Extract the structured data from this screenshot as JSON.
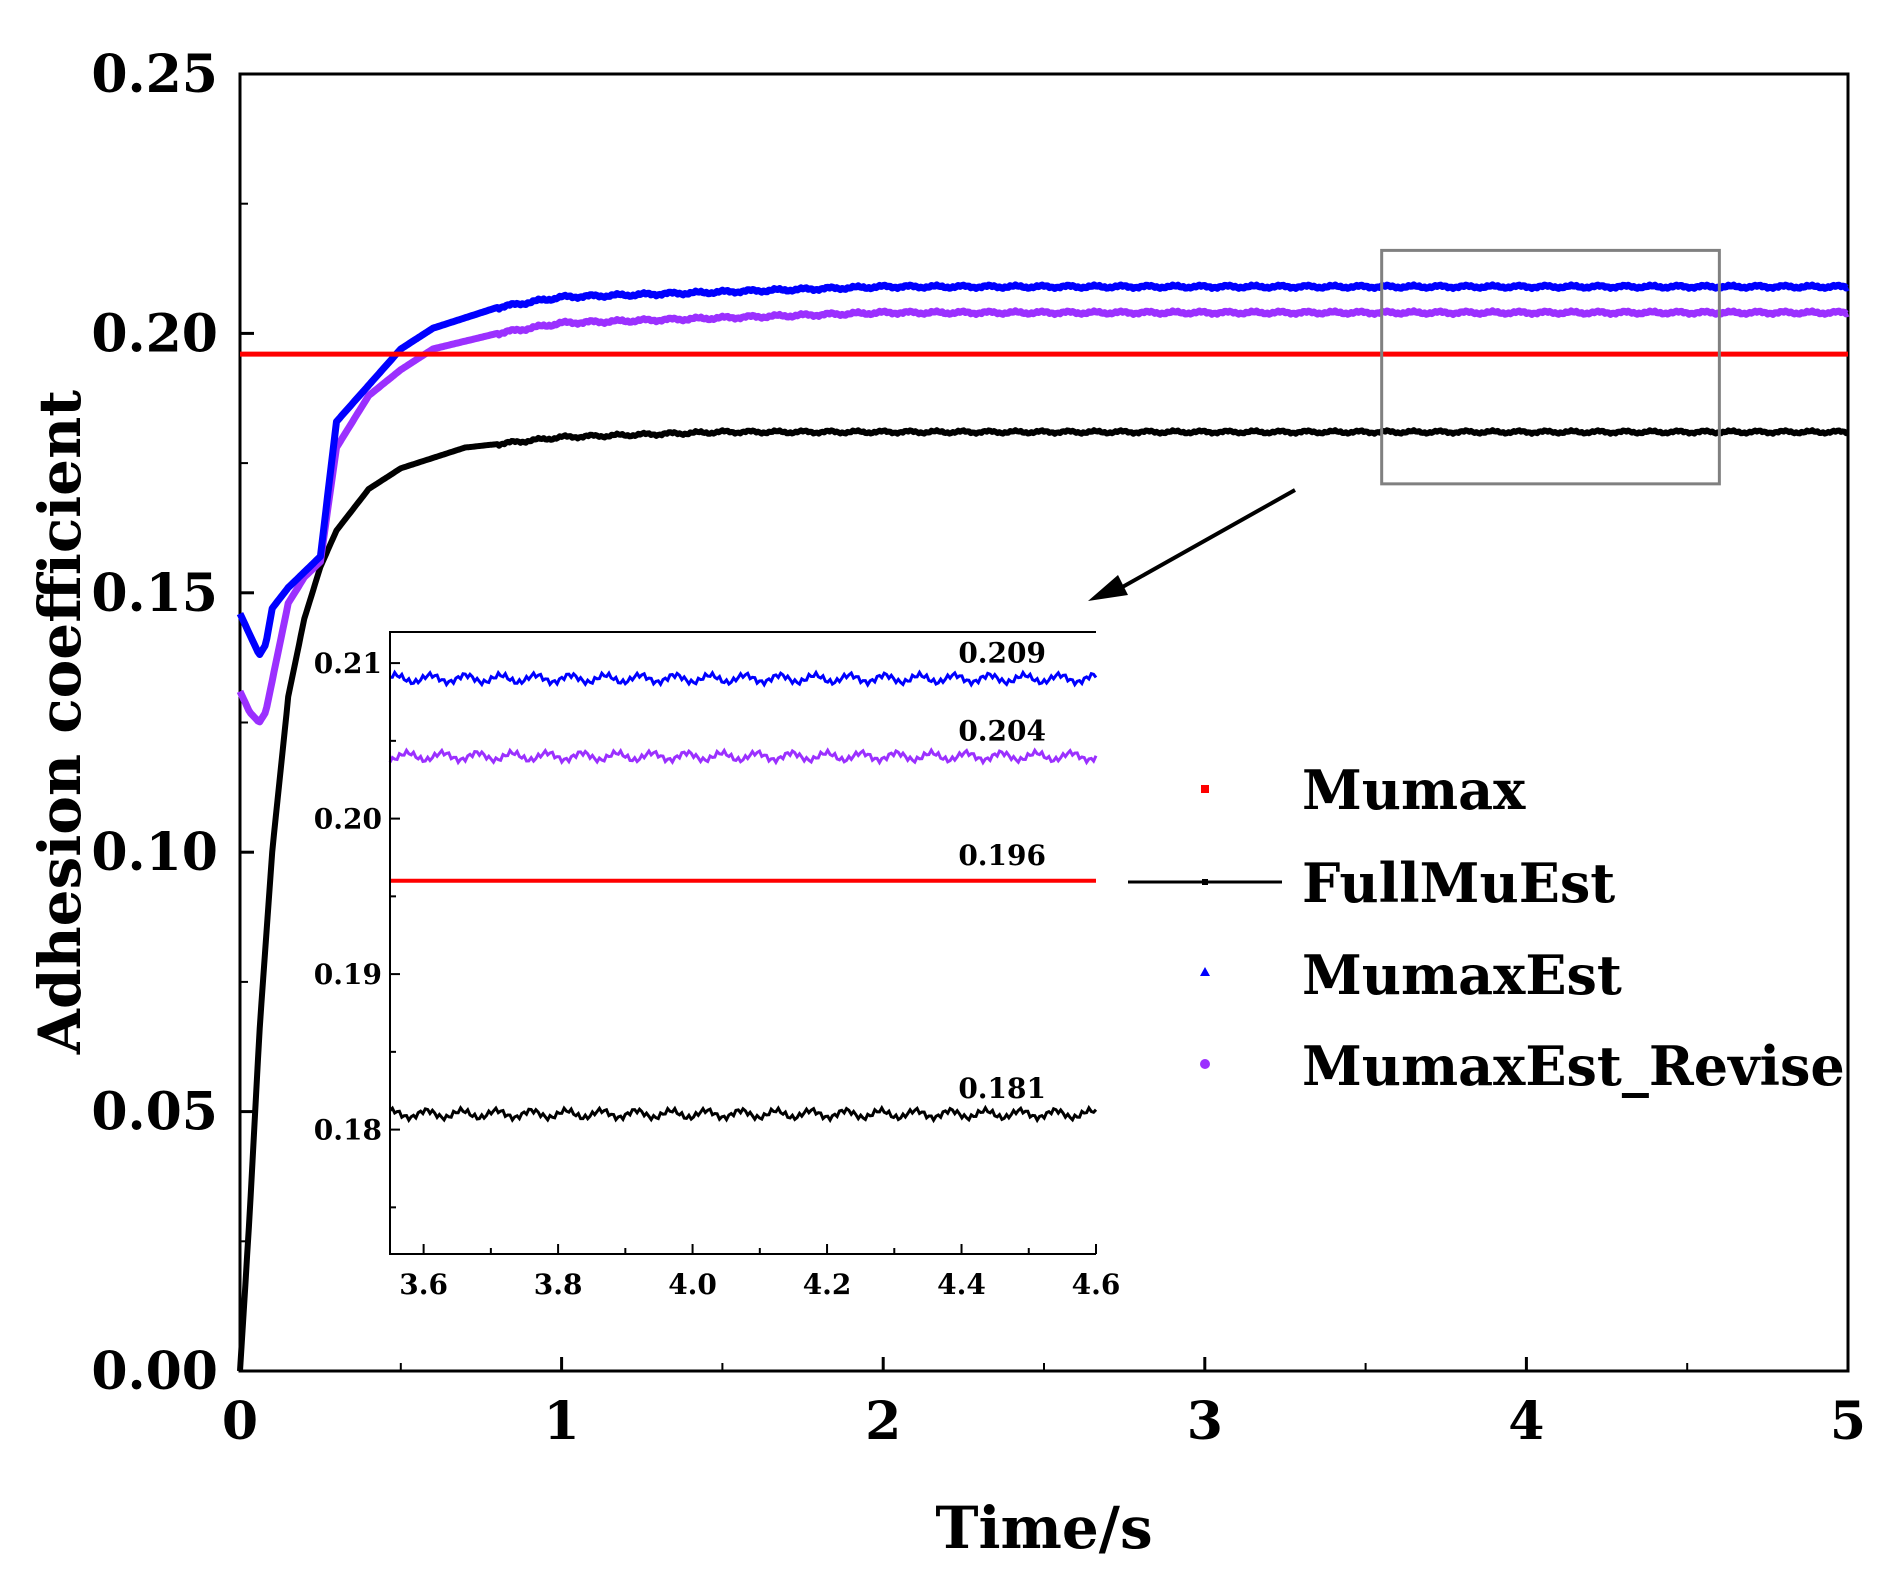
{
  "chart_data": [
    {
      "type": "line",
      "role": "main",
      "title": "",
      "xlabel": "Time/s",
      "ylabel": "Adhesion coefficient",
      "xlim": [
        0,
        5
      ],
      "ylim": [
        0,
        0.25
      ],
      "x_ticks": [
        "0",
        "1",
        "2",
        "3",
        "4",
        "5"
      ],
      "y_ticks": [
        "0.00",
        "0.05",
        "0.10",
        "0.15",
        "0.20",
        "0.25"
      ],
      "series": [
        {
          "name": "Mumax",
          "color": "#ff0000",
          "points": [
            [
              0,
              0.196
            ],
            [
              5,
              0.196
            ]
          ]
        },
        {
          "name": "FullMuEst",
          "color": "#000000",
          "points": [
            [
              0,
              0.0
            ],
            [
              0.03,
              0.03
            ],
            [
              0.06,
              0.065
            ],
            [
              0.1,
              0.1
            ],
            [
              0.15,
              0.13
            ],
            [
              0.2,
              0.145
            ],
            [
              0.25,
              0.155
            ],
            [
              0.3,
              0.162
            ],
            [
              0.4,
              0.17
            ],
            [
              0.5,
              0.174
            ],
            [
              0.7,
              0.178
            ],
            [
              1.0,
              0.18
            ],
            [
              1.5,
              0.181
            ],
            [
              2,
              0.181
            ],
            [
              3,
              0.181
            ],
            [
              4,
              0.181
            ],
            [
              5,
              0.181
            ]
          ]
        },
        {
          "name": "MumaxEst",
          "color": "#0000ff",
          "points": [
            [
              0.0,
              0.146
            ],
            [
              0.03,
              0.142
            ],
            [
              0.06,
              0.138
            ],
            [
              0.08,
              0.14
            ],
            [
              0.1,
              0.147
            ],
            [
              0.15,
              0.151
            ],
            [
              0.2,
              0.154
            ],
            [
              0.25,
              0.157
            ],
            [
              0.3,
              0.183
            ],
            [
              0.4,
              0.19
            ],
            [
              0.5,
              0.197
            ],
            [
              0.6,
              0.201
            ],
            [
              0.8,
              0.205
            ],
            [
              1.0,
              0.207
            ],
            [
              1.5,
              0.208
            ],
            [
              2,
              0.209
            ],
            [
              3,
              0.209
            ],
            [
              4,
              0.209
            ],
            [
              5,
              0.209
            ]
          ]
        },
        {
          "name": "MumaxEst_Revise",
          "color": "#9b30ff",
          "points": [
            [
              0.0,
              0.131
            ],
            [
              0.03,
              0.127
            ],
            [
              0.06,
              0.125
            ],
            [
              0.08,
              0.127
            ],
            [
              0.1,
              0.133
            ],
            [
              0.15,
              0.148
            ],
            [
              0.2,
              0.153
            ],
            [
              0.25,
              0.156
            ],
            [
              0.3,
              0.178
            ],
            [
              0.4,
              0.188
            ],
            [
              0.5,
              0.193
            ],
            [
              0.6,
              0.197
            ],
            [
              0.8,
              0.2
            ],
            [
              1.0,
              0.202
            ],
            [
              1.5,
              0.203
            ],
            [
              2,
              0.204
            ],
            [
              3,
              0.204
            ],
            [
              4,
              0.204
            ],
            [
              5,
              0.204
            ]
          ]
        }
      ],
      "legend": [
        "Mumax",
        "FullMuEst",
        "MumaxEst",
        "MumaxEst_Revise"
      ],
      "zoom_box": {
        "xlim": [
          3.55,
          4.6
        ],
        "ylim": [
          0.171,
          0.216
        ]
      }
    },
    {
      "type": "line",
      "role": "inset",
      "xlim": [
        3.55,
        4.6
      ],
      "ylim": [
        0.172,
        0.212
      ],
      "x_ticks": [
        "3.6",
        "3.8",
        "4.0",
        "4.2",
        "4.4",
        "4.6"
      ],
      "y_ticks": [
        "0.18",
        "0.19",
        "0.20",
        "0.21"
      ],
      "series": [
        {
          "name": "MumaxEst",
          "color": "#0000ff",
          "value": 0.209,
          "label": "0.209"
        },
        {
          "name": "MumaxEst_Revise",
          "color": "#9b30ff",
          "value": 0.204,
          "label": "0.204"
        },
        {
          "name": "Mumax",
          "color": "#ff0000",
          "value": 0.196,
          "label": "0.196"
        },
        {
          "name": "FullMuEst",
          "color": "#000000",
          "value": 0.181,
          "label": "0.181"
        }
      ]
    }
  ]
}
